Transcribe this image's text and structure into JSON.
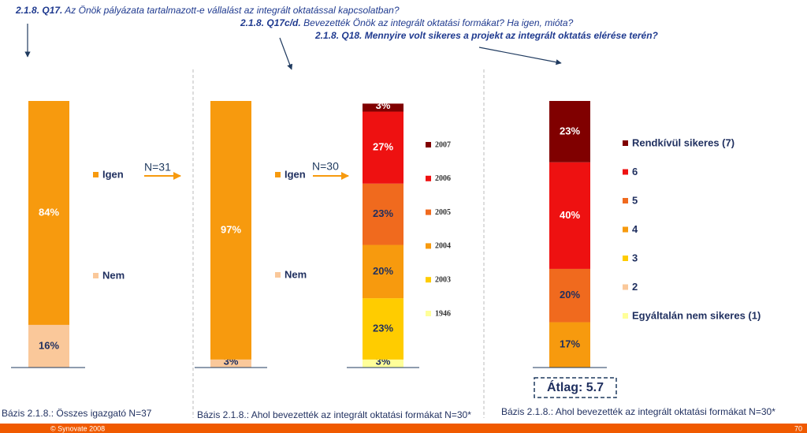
{
  "questions": [
    {
      "code": "2.1.8. Q17.",
      "text": "Az Önök pályázata tartalmazott-e vállalást az integrált oktatással kapcsolatban?"
    },
    {
      "code": "2.1.8. Q17c/d.",
      "text": "Bevezették Önök az integrált oktatási formákat? Ha igen, mióta?"
    },
    {
      "code": "2.1.8. Q18.",
      "text": "Mennyire volt sikeres a projekt az integrált oktatás elérése terén?"
    }
  ],
  "notes": [
    "N=31",
    "N=30"
  ],
  "footer": {
    "copyright": "© Synovate 2008",
    "page": "70"
  },
  "chart_data": [
    {
      "type": "bar",
      "stacked": true,
      "ylim": [
        0,
        100
      ],
      "base_note": "Bázis 2.1.8.: Összes igazgató N=37",
      "series": [
        {
          "name": "Nem",
          "color": "#fac89a",
          "label_color": "#1f2f5f",
          "values": [
            16
          ],
          "value_labels": [
            "16%"
          ]
        },
        {
          "name": "Igen",
          "color": "#f79a0e",
          "label_color": "#ffffff",
          "values": [
            84
          ],
          "value_labels": [
            "84%"
          ]
        }
      ]
    },
    {
      "type": "bar",
      "stacked": true,
      "ylim": [
        0,
        100
      ],
      "base_note": "Bázis 2.1.8.: Ahol bevezették az integrált oktatási formákat N=30*",
      "series": [
        {
          "name": "Nem",
          "color": "#fac89a",
          "label_color": "#1f2f5f",
          "values": [
            3
          ],
          "value_labels": [
            "3%"
          ]
        },
        {
          "name": "Igen",
          "color": "#f79a0e",
          "label_color": "#ffffff",
          "values": [
            97
          ],
          "value_labels": [
            "97%"
          ]
        }
      ]
    },
    {
      "type": "bar",
      "stacked": true,
      "ylim": [
        0,
        100
      ],
      "series": [
        {
          "name": "1946",
          "color": "#ffff99",
          "label_color": "#1f2f5f",
          "values": [
            3
          ],
          "value_labels": [
            "3%"
          ]
        },
        {
          "name": "2003",
          "color": "#ffcc00",
          "label_color": "#1f2f5f",
          "values": [
            23
          ],
          "value_labels": [
            "23%"
          ]
        },
        {
          "name": "2004",
          "color": "#f79a0e",
          "label_color": "#1f2f5f",
          "values": [
            20
          ],
          "value_labels": [
            "20%"
          ]
        },
        {
          "name": "2005",
          "color": "#f06a1e",
          "label_color": "#1f2f5f",
          "values": [
            23
          ],
          "value_labels": [
            "23%"
          ]
        },
        {
          "name": "2006",
          "color": "#ee1111",
          "label_color": "#ffffff",
          "values": [
            27
          ],
          "value_labels": [
            "27%"
          ]
        },
        {
          "name": "2007",
          "color": "#800000",
          "label_color": "#ffffff",
          "values": [
            3
          ],
          "value_labels": [
            "3%"
          ]
        }
      ]
    },
    {
      "type": "bar",
      "stacked": true,
      "ylim": [
        0,
        100
      ],
      "average": "Átlag: 5.7",
      "base_note": "Bázis 2.1.8.: Ahol bevezették az integrált oktatási formákat N=30*",
      "series": [
        {
          "name": "Egyáltalán nem sikeres (1)",
          "color": "#ffff99",
          "label_color": "#1f2f5f",
          "values": [
            0
          ]
        },
        {
          "name": "2",
          "color": "#fac89a",
          "label_color": "#1f2f5f",
          "values": [
            0
          ]
        },
        {
          "name": "3",
          "color": "#ffcc00",
          "label_color": "#1f2f5f",
          "values": [
            0
          ]
        },
        {
          "name": "4",
          "color": "#f79a0e",
          "label_color": "#1f2f5f",
          "values": [
            17
          ],
          "value_labels": [
            "17%"
          ]
        },
        {
          "name": "5",
          "color": "#f06a1e",
          "label_color": "#1f2f5f",
          "values": [
            20
          ],
          "value_labels": [
            "20%"
          ]
        },
        {
          "name": "6",
          "color": "#ee1111",
          "label_color": "#ffffff",
          "values": [
            40
          ],
          "value_labels": [
            "40%"
          ]
        },
        {
          "name": "Rendkívül sikeres (7)",
          "color": "#800000",
          "label_color": "#ffffff",
          "values": [
            23
          ],
          "value_labels": [
            "23%"
          ]
        }
      ]
    }
  ]
}
